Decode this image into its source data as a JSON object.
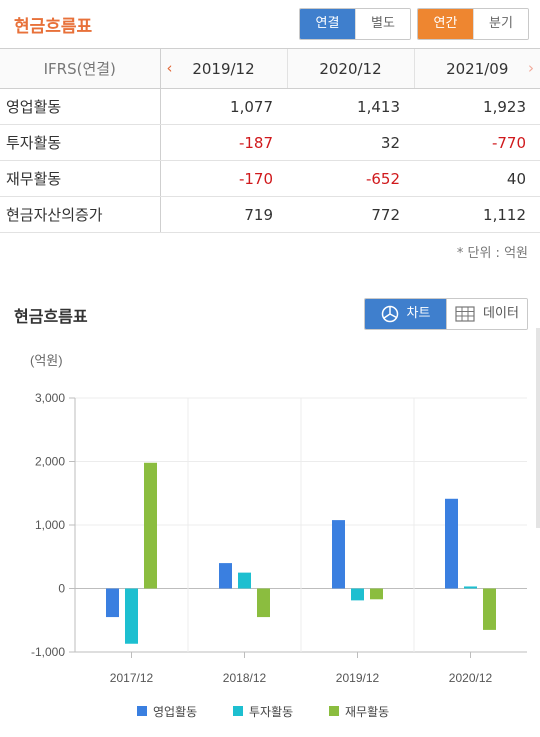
{
  "header": {
    "title": "현금흐름표",
    "consolidation": [
      {
        "label": "연결",
        "active": true
      },
      {
        "label": "별도",
        "active": false
      }
    ],
    "period": [
      {
        "label": "연간",
        "active": true
      },
      {
        "label": "분기",
        "active": false
      }
    ]
  },
  "table": {
    "corner": "IFRS(연결)",
    "columns": [
      "2019/12",
      "2020/12",
      "2021/09"
    ],
    "rows": [
      {
        "label": "영업활동",
        "values": [
          "1,077",
          "1,413",
          "1,923"
        ]
      },
      {
        "label": "투자활동",
        "values": [
          "-187",
          "32",
          "-770"
        ]
      },
      {
        "label": "재무활동",
        "values": [
          "-170",
          "-652",
          "40"
        ]
      },
      {
        "label": "현금자산의증가",
        "values": [
          "719",
          "772",
          "1,112"
        ]
      }
    ],
    "negative_color": "#d0191c"
  },
  "unit_note": "* 단위 : 억원",
  "section": {
    "title": "현금흐름표",
    "chart_button": "차트",
    "data_button": "데이터"
  },
  "chart_data": {
    "type": "bar",
    "unit_label": "(억원)",
    "categories": [
      "2017/12",
      "2018/12",
      "2019/12",
      "2020/12"
    ],
    "ylim": [
      -1000,
      3000
    ],
    "yticks": [
      3000,
      2000,
      1000,
      0,
      -1000
    ],
    "ytick_labels": [
      "3,000",
      "2,000",
      "1,000",
      "0",
      "-1,000"
    ],
    "grid": true,
    "legend_position": "bottom",
    "series": [
      {
        "name": "영업활동",
        "color": "#3a7fe0",
        "values": [
          -450,
          400,
          1077,
          1413
        ]
      },
      {
        "name": "투자활동",
        "color": "#1dbfd0",
        "values": [
          -870,
          250,
          -187,
          32
        ]
      },
      {
        "name": "재무활동",
        "color": "#8bbd3f",
        "values": [
          1980,
          -450,
          -170,
          -652
        ]
      }
    ]
  }
}
